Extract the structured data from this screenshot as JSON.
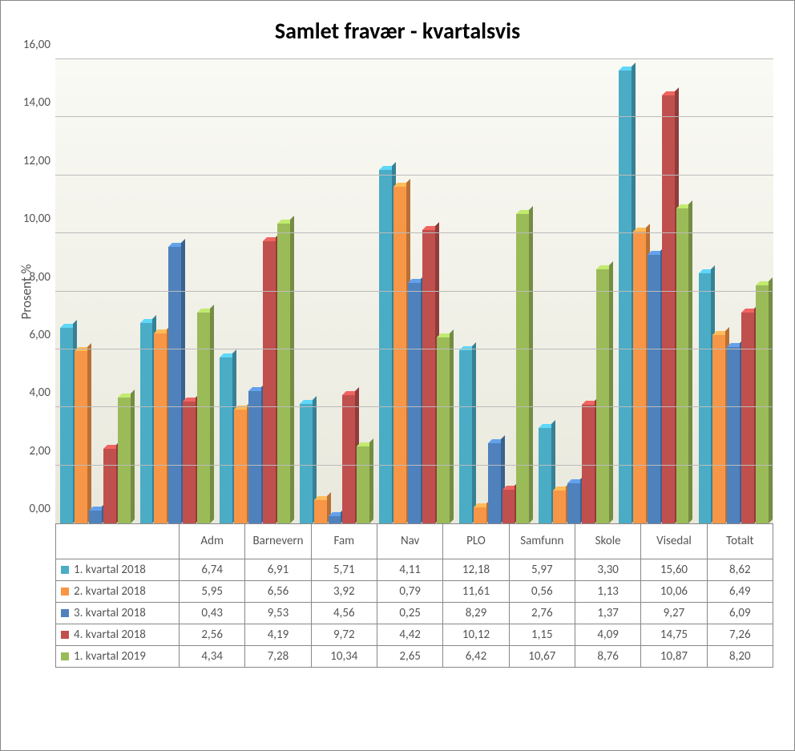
{
  "chart": {
    "type": "bar",
    "title": "Samlet fravær - kvartalsvis",
    "title_fontsize": 28,
    "y_axis_label": "Prosent %",
    "background_gradient_top": "#fafaf5",
    "background_gradient_bottom": "#e8e8dc",
    "grid_color": "#bbbbbb",
    "border_color": "#888888",
    "text_color": "#555555",
    "ylim": [
      0,
      16
    ],
    "ytick_step": 2,
    "yticks": [
      "0,00",
      "2,00",
      "4,00",
      "6,00",
      "8,00",
      "10,00",
      "12,00",
      "14,00",
      "16,00"
    ],
    "categories": [
      "Adm",
      "Barnevern",
      "Fam",
      "Nav",
      "PLO",
      "Samfunn",
      "Skole",
      "Visedal",
      "Totalt"
    ],
    "series": [
      {
        "name": "1. kvartal 2018",
        "color": "#4bacc6",
        "values": [
          6.74,
          6.91,
          5.71,
          4.11,
          12.18,
          5.97,
          3.3,
          15.6,
          8.62
        ],
        "labels": [
          "6,74",
          "6,91",
          "5,71",
          "4,11",
          "12,18",
          "5,97",
          "3,30",
          "15,60",
          "8,62"
        ]
      },
      {
        "name": "2. kvartal 2018",
        "color": "#f79646",
        "values": [
          5.95,
          6.56,
          3.92,
          0.79,
          11.61,
          0.56,
          1.13,
          10.06,
          6.49
        ],
        "labels": [
          "5,95",
          "6,56",
          "3,92",
          "0,79",
          "11,61",
          "0,56",
          "1,13",
          "10,06",
          "6,49"
        ]
      },
      {
        "name": "3. kvartal 2018",
        "color": "#4f81bd",
        "values": [
          0.43,
          9.53,
          4.56,
          0.25,
          8.29,
          2.76,
          1.37,
          9.27,
          6.09
        ],
        "labels": [
          "0,43",
          "9,53",
          "4,56",
          "0,25",
          "8,29",
          "2,76",
          "1,37",
          "9,27",
          "6,09"
        ]
      },
      {
        "name": "4. kvartal 2018",
        "color": "#c0504d",
        "values": [
          2.56,
          4.19,
          9.72,
          4.42,
          10.12,
          1.15,
          4.09,
          14.75,
          7.26
        ],
        "labels": [
          "2,56",
          "4,19",
          "9,72",
          "4,42",
          "10,12",
          "1,15",
          "4,09",
          "14,75",
          "7,26"
        ]
      },
      {
        "name": "1. kvartal 2019",
        "color": "#9bbb59",
        "values": [
          4.34,
          7.28,
          10.34,
          2.65,
          6.42,
          10.67,
          8.76,
          10.87,
          8.2
        ],
        "labels": [
          "4,34",
          "7,28",
          "10,34",
          "2,65",
          "6,42",
          "10,67",
          "8,76",
          "10,87",
          "8,20"
        ]
      }
    ]
  }
}
